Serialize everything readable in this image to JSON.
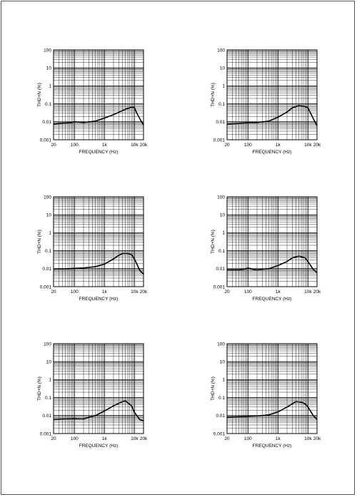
{
  "chart_data": [
    {
      "type": "line",
      "xlabel": "FREQUENCY (Hz)",
      "ylabel": "THD+N (%)",
      "x_scale": "log",
      "y_scale": "log",
      "xlim": [
        20,
        20000
      ],
      "ylim": [
        0.001,
        100
      ],
      "grid": true,
      "x_tick_labels": [
        "20",
        "100",
        "1k",
        "10k",
        "20k"
      ],
      "y_tick_labels": [
        "100",
        "10",
        "1",
        "0.1",
        "0.01",
        "0.001"
      ],
      "series": [
        {
          "x": [
            20,
            50,
            80,
            100,
            200,
            500,
            1000,
            2000,
            5000,
            8000,
            10000,
            12000,
            15000,
            20000
          ],
          "y": [
            0.0075,
            0.0085,
            0.009,
            0.01,
            0.009,
            0.011,
            0.016,
            0.025,
            0.05,
            0.065,
            0.06,
            0.03,
            0.015,
            0.0065
          ]
        }
      ]
    },
    {
      "type": "line",
      "xlabel": "FREQUENCY (Hz)",
      "ylabel": "THD+N (%)",
      "x_scale": "log",
      "y_scale": "log",
      "xlim": [
        20,
        20000
      ],
      "ylim": [
        0.001,
        100
      ],
      "grid": true,
      "x_tick_labels": [
        "20",
        "100",
        "1k",
        "10k",
        "20k"
      ],
      "y_tick_labels": [
        "100",
        "10",
        "1",
        "0.1",
        "0.01",
        "0.001"
      ],
      "series": [
        {
          "x": [
            20,
            50,
            100,
            200,
            500,
            1000,
            2000,
            3000,
            5000,
            8000,
            10000,
            15000,
            20000
          ],
          "y": [
            0.0075,
            0.008,
            0.009,
            0.009,
            0.011,
            0.018,
            0.035,
            0.06,
            0.08,
            0.07,
            0.06,
            0.015,
            0.006
          ]
        }
      ]
    },
    {
      "type": "line",
      "xlabel": "FREQUENCY (Hz)",
      "ylabel": "THD+N (%)",
      "x_scale": "log",
      "y_scale": "log",
      "xlim": [
        20,
        20000
      ],
      "ylim": [
        0.001,
        100
      ],
      "grid": true,
      "x_tick_labels": [
        "20",
        "100",
        "1k",
        "10k",
        "20k"
      ],
      "y_tick_labels": [
        "100",
        "10",
        "1",
        "0.1",
        "0.01",
        "0.001"
      ],
      "series": [
        {
          "x": [
            20,
            50,
            100,
            200,
            500,
            1000,
            2000,
            3000,
            4000,
            6000,
            8000,
            10000,
            15000,
            20000
          ],
          "y": [
            0.0095,
            0.0098,
            0.0105,
            0.011,
            0.013,
            0.018,
            0.035,
            0.055,
            0.07,
            0.07,
            0.06,
            0.035,
            0.008,
            0.005
          ]
        }
      ]
    },
    {
      "type": "line",
      "xlabel": "FREQUENCY (Hz)",
      "ylabel": "THD+N (%)",
      "x_scale": "log",
      "y_scale": "log",
      "xlim": [
        20,
        20000
      ],
      "ylim": [
        0.001,
        100
      ],
      "grid": true,
      "x_tick_labels": [
        "20",
        "100",
        "1k",
        "10k",
        "20k"
      ],
      "y_tick_labels": [
        "100",
        "10",
        "1",
        "0.1",
        "0.01",
        "0.001"
      ],
      "series": [
        {
          "x": [
            20,
            50,
            80,
            100,
            150,
            200,
            500,
            1000,
            2000,
            3000,
            5000,
            8000,
            10000,
            15000,
            20000
          ],
          "y": [
            0.0085,
            0.0085,
            0.0095,
            0.011,
            0.009,
            0.0085,
            0.01,
            0.015,
            0.025,
            0.04,
            0.05,
            0.04,
            0.025,
            0.009,
            0.006
          ]
        }
      ]
    },
    {
      "type": "line",
      "xlabel": "FREQUENCY (Hz)",
      "ylabel": "THD+N (%)",
      "x_scale": "log",
      "y_scale": "log",
      "xlim": [
        20,
        20000
      ],
      "ylim": [
        0.001,
        100
      ],
      "grid": true,
      "x_tick_labels": [
        "20",
        "100",
        "1k",
        "10k",
        "20k"
      ],
      "y_tick_labels": [
        "100",
        "10",
        "1",
        "0.1",
        "0.01",
        "0.001"
      ],
      "series": [
        {
          "x": [
            20,
            50,
            100,
            200,
            300,
            500,
            1000,
            2000,
            4000,
            5000,
            8000,
            10000,
            15000,
            20000
          ],
          "y": [
            0.006,
            0.0065,
            0.0068,
            0.0065,
            0.008,
            0.01,
            0.018,
            0.035,
            0.06,
            0.065,
            0.035,
            0.015,
            0.006,
            0.005
          ]
        }
      ]
    },
    {
      "type": "line",
      "xlabel": "FREQUENCY (Hz)",
      "ylabel": "THD+N (%)",
      "x_scale": "log",
      "y_scale": "log",
      "xlim": [
        20,
        20000
      ],
      "ylim": [
        0.001,
        100
      ],
      "grid": true,
      "x_tick_labels": [
        "20",
        "100",
        "1k",
        "10k",
        "20k"
      ],
      "y_tick_labels": [
        "100",
        "10",
        "1",
        "0.1",
        "0.01",
        "0.001"
      ],
      "series": [
        {
          "x": [
            20,
            50,
            100,
            200,
            500,
            1000,
            2000,
            3000,
            4000,
            6000,
            8000,
            10000,
            15000,
            20000
          ],
          "y": [
            0.008,
            0.0085,
            0.009,
            0.0095,
            0.011,
            0.016,
            0.03,
            0.045,
            0.06,
            0.055,
            0.045,
            0.03,
            0.01,
            0.006
          ]
        }
      ]
    }
  ]
}
